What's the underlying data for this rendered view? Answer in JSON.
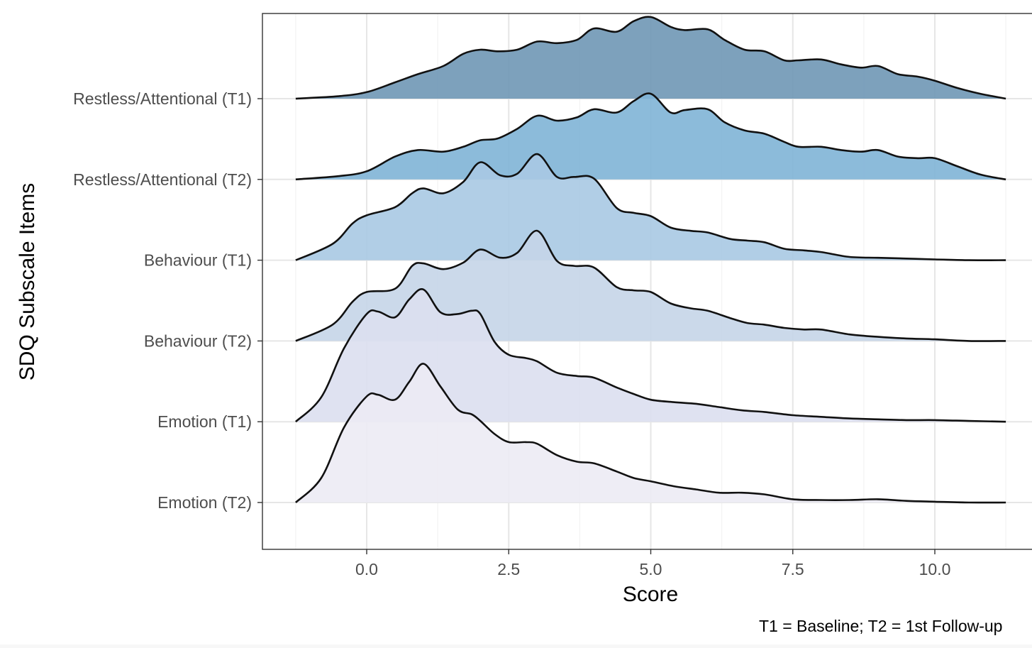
{
  "chart_data": {
    "type": "ridgeline",
    "xlabel": "Score",
    "ylabel": "SDQ Subscale Items",
    "caption": "T1 = Baseline; T2 = 1st Follow-up",
    "x_ticks": [
      0.0,
      2.5,
      5.0,
      7.5,
      10.0
    ],
    "x_tick_labels": [
      "0.0",
      "2.5",
      "5.0",
      "7.5",
      "10.0"
    ],
    "xlim": [
      -1.8,
      12.2
    ],
    "grid": true,
    "categories": [
      "Restless/Attentional (T1)",
      "Restless/Attentional (T2)",
      "Behaviour (T1)",
      "Behaviour  (T2)",
      "Emotion (T1)",
      "Emotion (T2)"
    ],
    "series": [
      {
        "name": "Restless/Attentional (T1)",
        "fill": "#6f97b5",
        "x": [
          -1.25,
          -0.5,
          0.0,
          0.5,
          0.9,
          1.35,
          1.7,
          2.0,
          2.3,
          2.65,
          3.0,
          3.35,
          3.7,
          4.0,
          4.4,
          4.7,
          5.0,
          5.35,
          5.6,
          6.0,
          6.3,
          6.65,
          7.0,
          7.35,
          7.6,
          8.0,
          8.35,
          8.7,
          9.0,
          9.35,
          9.7,
          10.0,
          10.4,
          10.8,
          11.25
        ],
        "y": [
          0.0,
          0.03,
          0.08,
          0.2,
          0.3,
          0.4,
          0.55,
          0.6,
          0.58,
          0.6,
          0.7,
          0.68,
          0.72,
          0.86,
          0.82,
          0.95,
          1.0,
          0.88,
          0.84,
          0.85,
          0.72,
          0.6,
          0.58,
          0.47,
          0.47,
          0.48,
          0.42,
          0.38,
          0.4,
          0.3,
          0.27,
          0.22,
          0.13,
          0.06,
          0.0
        ]
      },
      {
        "name": "Restless/Attentional (T2)",
        "fill": "#7fb4d6",
        "x": [
          -1.25,
          -0.5,
          0.0,
          0.5,
          0.9,
          1.35,
          1.7,
          2.0,
          2.3,
          2.65,
          3.0,
          3.35,
          3.7,
          4.0,
          4.4,
          4.7,
          5.0,
          5.35,
          5.6,
          6.0,
          6.3,
          6.65,
          7.0,
          7.35,
          7.6,
          8.0,
          8.35,
          8.7,
          9.0,
          9.35,
          9.7,
          10.0,
          10.4,
          10.8,
          11.25
        ],
        "y": [
          0.0,
          0.04,
          0.1,
          0.28,
          0.36,
          0.34,
          0.4,
          0.48,
          0.5,
          0.62,
          0.78,
          0.72,
          0.76,
          0.86,
          0.82,
          0.96,
          1.05,
          0.82,
          0.85,
          0.86,
          0.7,
          0.6,
          0.56,
          0.46,
          0.4,
          0.4,
          0.36,
          0.34,
          0.36,
          0.28,
          0.26,
          0.26,
          0.16,
          0.06,
          0.0
        ]
      },
      {
        "name": "Behaviour (T1)",
        "fill": "#a9c9e3",
        "x": [
          -1.25,
          -0.6,
          -0.25,
          0.0,
          0.5,
          0.8,
          1.0,
          1.35,
          1.7,
          2.0,
          2.35,
          2.65,
          3.0,
          3.35,
          3.65,
          4.0,
          4.4,
          4.7,
          5.0,
          5.35,
          5.7,
          6.0,
          6.4,
          6.7,
          7.0,
          7.35,
          7.7,
          8.0,
          8.5,
          9.0,
          9.5,
          10.0,
          10.6,
          11.25
        ],
        "y": [
          0.0,
          0.2,
          0.45,
          0.55,
          0.65,
          0.82,
          0.88,
          0.82,
          0.96,
          1.2,
          1.04,
          1.06,
          1.3,
          1.02,
          1.02,
          1.0,
          0.64,
          0.58,
          0.54,
          0.4,
          0.36,
          0.34,
          0.26,
          0.24,
          0.22,
          0.14,
          0.12,
          0.1,
          0.04,
          0.03,
          0.02,
          0.01,
          0.0,
          0.0
        ]
      },
      {
        "name": "Behaviour  (T2)",
        "fill": "#c5d5e8",
        "x": [
          -1.25,
          -0.6,
          -0.25,
          0.0,
          0.5,
          0.8,
          1.0,
          1.35,
          1.7,
          2.0,
          2.35,
          2.65,
          3.0,
          3.35,
          3.65,
          4.0,
          4.4,
          4.7,
          5.0,
          5.35,
          5.7,
          6.0,
          6.4,
          6.7,
          7.0,
          7.35,
          7.7,
          8.0,
          8.5,
          9.0,
          9.5,
          10.0,
          10.6,
          11.25
        ],
        "y": [
          0.0,
          0.2,
          0.48,
          0.6,
          0.64,
          0.92,
          0.95,
          0.88,
          0.96,
          1.12,
          1.02,
          1.08,
          1.35,
          0.98,
          0.92,
          0.9,
          0.66,
          0.62,
          0.6,
          0.46,
          0.4,
          0.37,
          0.28,
          0.22,
          0.2,
          0.16,
          0.14,
          0.14,
          0.08,
          0.05,
          0.03,
          0.02,
          0.0,
          0.0
        ]
      },
      {
        "name": "Emotion (T1)",
        "fill": "#dcdff0",
        "x": [
          -1.25,
          -0.8,
          -0.4,
          0.0,
          0.2,
          0.5,
          0.75,
          1.0,
          1.3,
          1.6,
          1.85,
          2.0,
          2.25,
          2.5,
          2.8,
          3.0,
          3.35,
          3.7,
          4.0,
          4.4,
          4.7,
          5.0,
          5.4,
          5.8,
          6.2,
          6.6,
          7.0,
          7.5,
          8.0,
          8.5,
          9.0,
          9.5,
          10.0,
          10.6,
          11.25
        ],
        "y": [
          0.0,
          0.3,
          0.9,
          1.32,
          1.35,
          1.28,
          1.5,
          1.62,
          1.34,
          1.32,
          1.36,
          1.32,
          0.98,
          0.82,
          0.78,
          0.74,
          0.6,
          0.56,
          0.54,
          0.42,
          0.34,
          0.27,
          0.24,
          0.22,
          0.18,
          0.14,
          0.12,
          0.08,
          0.06,
          0.04,
          0.03,
          0.02,
          0.02,
          0.01,
          0.0
        ]
      },
      {
        "name": "Emotion (T2)",
        "fill": "#ecebf4",
        "x": [
          -1.25,
          -0.8,
          -0.4,
          0.0,
          0.2,
          0.5,
          0.75,
          1.0,
          1.3,
          1.6,
          1.85,
          2.0,
          2.25,
          2.5,
          2.8,
          3.0,
          3.35,
          3.7,
          4.0,
          4.4,
          4.7,
          5.0,
          5.4,
          5.8,
          6.2,
          6.6,
          7.0,
          7.5,
          8.0,
          8.5,
          9.0,
          9.5,
          10.0,
          10.6,
          11.25
        ],
        "y": [
          0.0,
          0.3,
          0.92,
          1.3,
          1.32,
          1.26,
          1.48,
          1.7,
          1.42,
          1.14,
          1.08,
          1.0,
          0.84,
          0.74,
          0.74,
          0.72,
          0.58,
          0.5,
          0.48,
          0.38,
          0.3,
          0.26,
          0.2,
          0.16,
          0.12,
          0.12,
          0.1,
          0.04,
          0.03,
          0.03,
          0.04,
          0.02,
          0.01,
          0.0,
          0.0
        ]
      }
    ]
  }
}
